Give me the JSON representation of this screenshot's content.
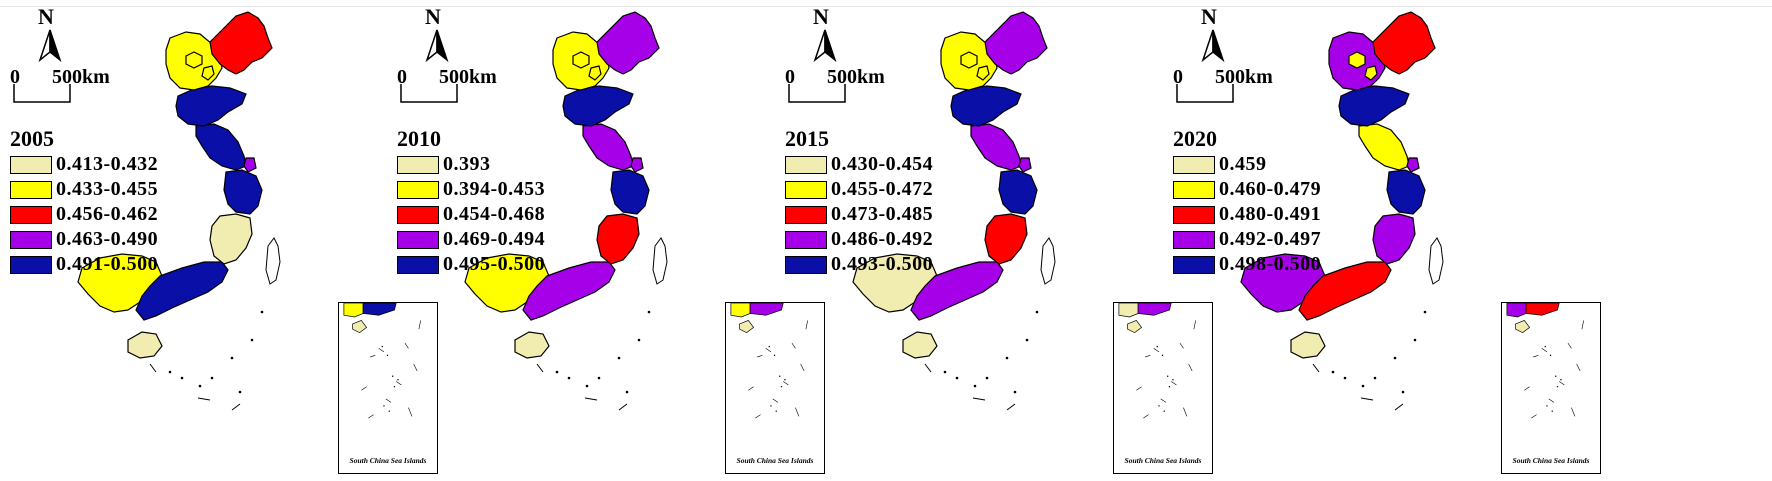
{
  "map_common": {
    "north_label": "N",
    "scale_zero": "0",
    "scale_distance": "500km",
    "inset_label": "South China Sea Islands"
  },
  "panels": [
    {
      "year": "2005",
      "legend": [
        {
          "label": "0.413-0.432",
          "color": "#F1EDB0"
        },
        {
          "label": "0.433-0.455",
          "color": "#FFFF00"
        },
        {
          "label": "0.456-0.462",
          "color": "#FF0000"
        },
        {
          "label": "0.463-0.490",
          "color": "#A600E8"
        },
        {
          "label": "0.491-0.500",
          "color": "#0A0FA8"
        }
      ],
      "regions": {
        "liaoning": 2,
        "hebei": 1,
        "beijing": 1,
        "tianjin": 1,
        "shandong": 4,
        "jiangsu": 4,
        "shanghai": 3,
        "zhejiang": 4,
        "fujian": 0,
        "guangdong": 4,
        "guangxi": 1,
        "hainan": 0
      }
    },
    {
      "year": "2010",
      "legend": [
        {
          "label": "0.393",
          "color": "#F1EDB0"
        },
        {
          "label": "0.394-0.453",
          "color": "#FFFF00"
        },
        {
          "label": "0.454-0.468",
          "color": "#FF0000"
        },
        {
          "label": "0.469-0.494",
          "color": "#A600E8"
        },
        {
          "label": "0.495-0.500",
          "color": "#0A0FA8"
        }
      ],
      "regions": {
        "liaoning": 3,
        "hebei": 1,
        "beijing": 1,
        "tianjin": 1,
        "shandong": 4,
        "jiangsu": 3,
        "shanghai": 3,
        "zhejiang": 4,
        "fujian": 2,
        "guangdong": 3,
        "guangxi": 1,
        "hainan": 0
      }
    },
    {
      "year": "2015",
      "legend": [
        {
          "label": "0.430-0.454",
          "color": "#F1EDB0"
        },
        {
          "label": "0.455-0.472",
          "color": "#FFFF00"
        },
        {
          "label": "0.473-0.485",
          "color": "#FF0000"
        },
        {
          "label": "0.486-0.492",
          "color": "#A600E8"
        },
        {
          "label": "0.493-0.500",
          "color": "#0A0FA8"
        }
      ],
      "regions": {
        "liaoning": 3,
        "hebei": 1,
        "beijing": 1,
        "tianjin": 1,
        "shandong": 4,
        "jiangsu": 3,
        "shanghai": 3,
        "zhejiang": 4,
        "fujian": 2,
        "guangdong": 3,
        "guangxi": 0,
        "hainan": 0
      }
    },
    {
      "year": "2020",
      "legend": [
        {
          "label": "0.459",
          "color": "#F1EDB0"
        },
        {
          "label": "0.460-0.479",
          "color": "#FFFF00"
        },
        {
          "label": "0.480-0.491",
          "color": "#FF0000"
        },
        {
          "label": "0.492-0.497",
          "color": "#A600E8"
        },
        {
          "label": "0.498-0.500",
          "color": "#0A0FA8"
        }
      ],
      "regions": {
        "liaoning": 2,
        "hebei": 3,
        "beijing": 1,
        "tianjin": 1,
        "shandong": 4,
        "jiangsu": 1,
        "shanghai": 3,
        "zhejiang": 4,
        "fujian": 3,
        "guangdong": 2,
        "guangxi": 3,
        "hainan": 0
      }
    }
  ]
}
